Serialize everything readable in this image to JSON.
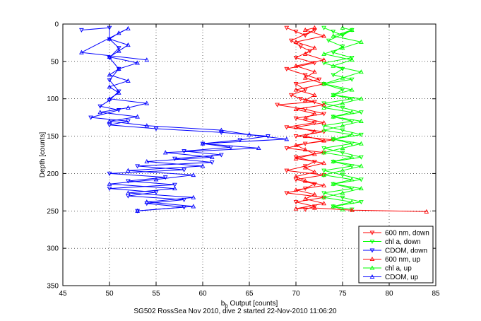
{
  "chart_data": {
    "type": "line",
    "xlabel": "b_b Output [counts]",
    "ylabel": "Depth [counts]",
    "caption": "SG502 RossSea Nov 2010, dive 2 started 22-Nov-2010 11:06:20",
    "xlim": [
      45,
      85
    ],
    "ylim": [
      350,
      0
    ],
    "x_ticks": [
      45,
      50,
      55,
      60,
      65,
      70,
      75,
      80,
      85
    ],
    "y_ticks": [
      0,
      50,
      100,
      150,
      200,
      250,
      300,
      350
    ],
    "grid": true,
    "legend_position": "bottom-right",
    "series": [
      {
        "name": "600 nm, down",
        "color": "#ff0000",
        "marker": "triangle-down",
        "connected": true,
        "points": [
          [
            69,
            5
          ],
          [
            70,
            10
          ],
          [
            71,
            15
          ],
          [
            72,
            8
          ],
          [
            69.5,
            22
          ],
          [
            70.5,
            30
          ],
          [
            71.5,
            36
          ],
          [
            70,
            45
          ],
          [
            72,
            52
          ],
          [
            69,
            60
          ],
          [
            71,
            68
          ],
          [
            72.5,
            74
          ],
          [
            70,
            80
          ],
          [
            71,
            88
          ],
          [
            69.5,
            95
          ],
          [
            70.5,
            100
          ],
          [
            72,
            104
          ],
          [
            68,
            108
          ],
          [
            71,
            114
          ],
          [
            73,
            120
          ],
          [
            70,
            126
          ],
          [
            72,
            132
          ],
          [
            69,
            138
          ],
          [
            73,
            144
          ],
          [
            70,
            150
          ],
          [
            74,
            155
          ],
          [
            71,
            160
          ],
          [
            69,
            166
          ],
          [
            73,
            172
          ],
          [
            70,
            178
          ],
          [
            72,
            184
          ],
          [
            71,
            190
          ],
          [
            69,
            196
          ],
          [
            73,
            202
          ],
          [
            70,
            208
          ],
          [
            72,
            214
          ],
          [
            71,
            220
          ],
          [
            69,
            226
          ],
          [
            73,
            232
          ],
          [
            70,
            238
          ],
          [
            72,
            244
          ],
          [
            71,
            248
          ]
        ]
      },
      {
        "name": "chl a, down",
        "color": "#00ff00",
        "marker": "triangle-down",
        "connected": true,
        "points": [
          [
            73,
            5
          ],
          [
            74,
            10
          ],
          [
            75,
            15
          ],
          [
            76,
            8
          ],
          [
            73.5,
            22
          ],
          [
            75,
            30
          ],
          [
            74,
            38
          ],
          [
            76,
            45
          ],
          [
            73,
            52
          ],
          [
            75,
            60
          ],
          [
            74,
            68
          ],
          [
            76,
            74
          ],
          [
            73,
            80
          ],
          [
            75,
            88
          ],
          [
            74,
            95
          ],
          [
            76,
            100
          ],
          [
            73,
            106
          ],
          [
            75,
            112
          ],
          [
            77,
            118
          ],
          [
            74,
            124
          ],
          [
            76,
            130
          ],
          [
            73,
            136
          ],
          [
            75,
            142
          ],
          [
            77,
            148
          ],
          [
            74,
            154
          ],
          [
            76,
            160
          ],
          [
            73,
            166
          ],
          [
            75,
            172
          ],
          [
            77,
            178
          ],
          [
            74,
            184
          ],
          [
            76,
            190
          ],
          [
            73,
            196
          ],
          [
            75,
            202
          ],
          [
            77,
            208
          ],
          [
            74,
            214
          ],
          [
            76,
            220
          ],
          [
            73,
            226
          ],
          [
            75,
            232
          ],
          [
            77,
            238
          ],
          [
            74,
            244
          ],
          [
            76,
            248
          ]
        ]
      },
      {
        "name": "CDOM, down",
        "color": "#0000ff",
        "marker": "triangle-down",
        "connected": true,
        "points": [
          [
            47,
            8
          ],
          [
            50,
            5
          ],
          [
            50,
            20
          ],
          [
            51,
            32
          ],
          [
            50,
            45
          ],
          [
            51,
            60
          ],
          [
            50,
            75
          ],
          [
            51,
            90
          ],
          [
            50,
            102
          ],
          [
            49,
            110
          ],
          [
            51,
            115
          ],
          [
            48,
            125
          ],
          [
            52,
            130
          ],
          [
            50,
            135
          ],
          [
            55,
            140
          ],
          [
            62,
            145
          ],
          [
            67,
            150
          ],
          [
            64,
            155
          ],
          [
            60,
            160
          ],
          [
            63,
            165
          ],
          [
            58,
            170
          ],
          [
            62,
            175
          ],
          [
            57,
            180
          ],
          [
            61,
            185
          ],
          [
            53,
            190
          ],
          [
            58,
            195
          ],
          [
            50,
            200
          ],
          [
            56,
            205
          ],
          [
            52,
            210
          ],
          [
            57,
            215
          ],
          [
            50,
            220
          ],
          [
            55,
            225
          ],
          [
            52,
            230
          ],
          [
            58,
            235
          ],
          [
            54,
            240
          ],
          [
            58,
            245
          ],
          [
            53,
            250
          ]
        ]
      },
      {
        "name": "600 nm, up",
        "color": "#ff0000",
        "marker": "triangle-up",
        "connected": true,
        "points": [
          [
            84,
            251
          ],
          [
            76,
            249
          ],
          [
            72,
            246
          ],
          [
            70,
            247
          ],
          [
            73,
            240
          ],
          [
            71,
            234
          ],
          [
            72,
            228
          ],
          [
            70,
            222
          ],
          [
            73,
            216
          ],
          [
            71,
            210
          ],
          [
            70,
            204
          ],
          [
            72,
            198
          ],
          [
            71,
            192
          ],
          [
            73,
            186
          ],
          [
            70,
            180
          ],
          [
            72,
            174
          ],
          [
            71,
            168
          ],
          [
            70,
            162
          ],
          [
            73,
            156
          ],
          [
            71,
            150
          ],
          [
            72,
            144
          ],
          [
            70,
            138
          ],
          [
            73,
            132
          ],
          [
            71,
            126
          ],
          [
            72,
            120
          ],
          [
            70,
            114
          ],
          [
            73,
            108
          ],
          [
            71,
            102
          ],
          [
            72,
            95
          ],
          [
            70,
            88
          ],
          [
            73,
            80
          ],
          [
            71,
            72
          ],
          [
            72,
            64
          ],
          [
            70,
            56
          ],
          [
            73,
            48
          ],
          [
            71,
            40
          ],
          [
            72,
            32
          ],
          [
            70,
            24
          ],
          [
            73,
            16
          ],
          [
            71,
            8
          ],
          [
            72,
            5
          ]
        ]
      },
      {
        "name": "chl a, up",
        "color": "#00ff00",
        "marker": "triangle-up",
        "connected": true,
        "points": [
          [
            75,
            248
          ],
          [
            74,
            244
          ],
          [
            76,
            238
          ],
          [
            73,
            232
          ],
          [
            75,
            226
          ],
          [
            77,
            220
          ],
          [
            74,
            214
          ],
          [
            76,
            208
          ],
          [
            73,
            202
          ],
          [
            75,
            196
          ],
          [
            77,
            190
          ],
          [
            74,
            184
          ],
          [
            76,
            178
          ],
          [
            73,
            172
          ],
          [
            75,
            166
          ],
          [
            77,
            160
          ],
          [
            74,
            154
          ],
          [
            76,
            148
          ],
          [
            73,
            142
          ],
          [
            75,
            136
          ],
          [
            77,
            130
          ],
          [
            74,
            124
          ],
          [
            76,
            118
          ],
          [
            73,
            112
          ],
          [
            75,
            106
          ],
          [
            77,
            100
          ],
          [
            74,
            95
          ],
          [
            76,
            88
          ],
          [
            73,
            80
          ],
          [
            75,
            72
          ],
          [
            77,
            64
          ],
          [
            74,
            56
          ],
          [
            76,
            48
          ],
          [
            73,
            40
          ],
          [
            75,
            32
          ],
          [
            77,
            24
          ],
          [
            74,
            16
          ],
          [
            76,
            8
          ],
          [
            75,
            5
          ]
        ]
      },
      {
        "name": "CDOM, up",
        "color": "#0000ff",
        "marker": "triangle-up",
        "connected": true,
        "points": [
          [
            53,
            250
          ],
          [
            59,
            244
          ],
          [
            54,
            238
          ],
          [
            59,
            232
          ],
          [
            52,
            226
          ],
          [
            57,
            220
          ],
          [
            50,
            214
          ],
          [
            55,
            208
          ],
          [
            59,
            202
          ],
          [
            52,
            196
          ],
          [
            60,
            190
          ],
          [
            54,
            184
          ],
          [
            61,
            178
          ],
          [
            56,
            172
          ],
          [
            66,
            166
          ],
          [
            60,
            160
          ],
          [
            69,
            154
          ],
          [
            65,
            148
          ],
          [
            62,
            142
          ],
          [
            54,
            136
          ],
          [
            50,
            130
          ],
          [
            53,
            124
          ],
          [
            49,
            118
          ],
          [
            52,
            112
          ],
          [
            54,
            106
          ],
          [
            50,
            100
          ],
          [
            51,
            92
          ],
          [
            50,
            84
          ],
          [
            52,
            76
          ],
          [
            50,
            68
          ],
          [
            51,
            60
          ],
          [
            53,
            52
          ],
          [
            50,
            44
          ],
          [
            51,
            36
          ],
          [
            52,
            28
          ],
          [
            50,
            20
          ],
          [
            51,
            12
          ],
          [
            52,
            6
          ],
          [
            47,
            38
          ],
          [
            54,
            48
          ]
        ]
      }
    ]
  }
}
